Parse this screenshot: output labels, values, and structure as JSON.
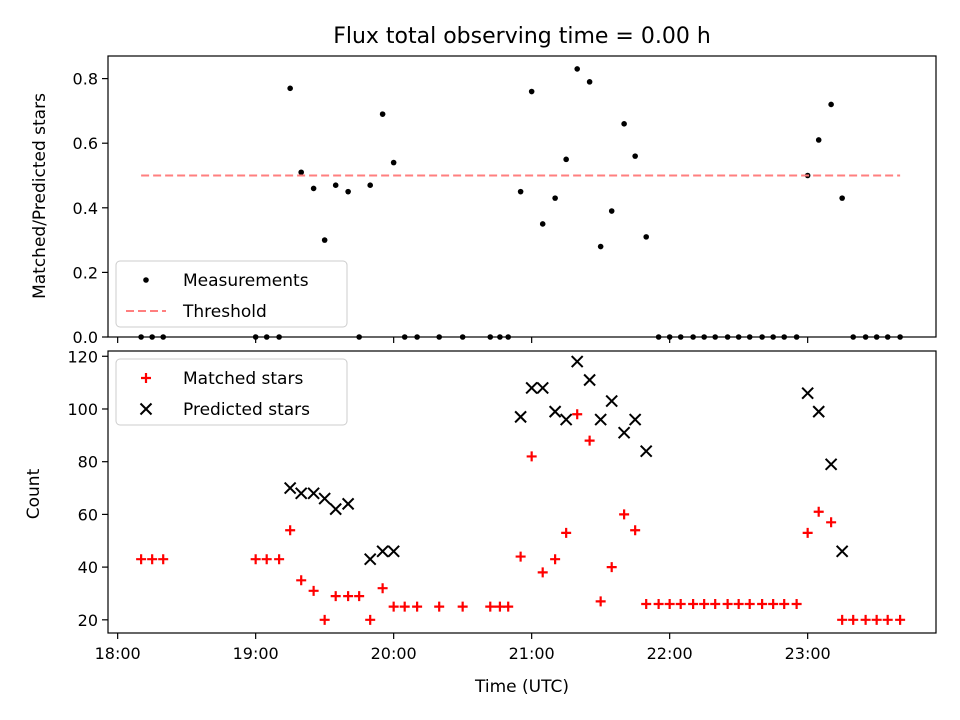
{
  "chart_data": [
    {
      "type": "scatter",
      "title": "Flux total observing time = 0.00 h",
      "ylabel": "Matched/Predicted stars",
      "xlabel": "",
      "ylim": [
        0,
        0.87
      ],
      "xlim": [
        17.93,
        23.93
      ],
      "yticks": [
        0.0,
        0.2,
        0.4,
        0.6,
        0.8
      ],
      "ytick_labels": [
        "0.0",
        "0.2",
        "0.4",
        "0.6",
        "0.8"
      ],
      "legend_position": "bottom-left",
      "series": [
        {
          "name": "Measurements",
          "marker": "dot",
          "color": "#000000",
          "points": [
            [
              18.17,
              0.0
            ],
            [
              18.25,
              0.0
            ],
            [
              18.33,
              0.0
            ],
            [
              19.0,
              0.0
            ],
            [
              19.08,
              0.0
            ],
            [
              19.17,
              0.0
            ],
            [
              19.25,
              0.77
            ],
            [
              19.33,
              0.51
            ],
            [
              19.42,
              0.46
            ],
            [
              19.5,
              0.3
            ],
            [
              19.58,
              0.47
            ],
            [
              19.67,
              0.45
            ],
            [
              19.75,
              0.0
            ],
            [
              19.83,
              0.47
            ],
            [
              19.92,
              0.69
            ],
            [
              20.0,
              0.54
            ],
            [
              20.08,
              0.0
            ],
            [
              20.17,
              0.0
            ],
            [
              20.33,
              0.0
            ],
            [
              20.5,
              0.0
            ],
            [
              20.7,
              0.0
            ],
            [
              20.77,
              0.0
            ],
            [
              20.83,
              0.0
            ],
            [
              20.92,
              0.45
            ],
            [
              21.0,
              0.76
            ],
            [
              21.08,
              0.35
            ],
            [
              21.17,
              0.43
            ],
            [
              21.25,
              0.55
            ],
            [
              21.33,
              0.83
            ],
            [
              21.42,
              0.79
            ],
            [
              21.5,
              0.28
            ],
            [
              21.58,
              0.39
            ],
            [
              21.67,
              0.66
            ],
            [
              21.75,
              0.56
            ],
            [
              21.83,
              0.31
            ],
            [
              21.92,
              0.0
            ],
            [
              22.0,
              0.0
            ],
            [
              22.08,
              0.0
            ],
            [
              22.17,
              0.0
            ],
            [
              22.25,
              0.0
            ],
            [
              22.33,
              0.0
            ],
            [
              22.42,
              0.0
            ],
            [
              22.5,
              0.0
            ],
            [
              22.58,
              0.0
            ],
            [
              22.67,
              0.0
            ],
            [
              22.75,
              0.0
            ],
            [
              22.83,
              0.0
            ],
            [
              22.92,
              0.0
            ],
            [
              23.0,
              0.5
            ],
            [
              23.08,
              0.61
            ],
            [
              23.17,
              0.72
            ],
            [
              23.25,
              0.43
            ],
            [
              23.33,
              0.0
            ],
            [
              23.42,
              0.0
            ],
            [
              23.5,
              0.0
            ],
            [
              23.58,
              0.0
            ],
            [
              23.67,
              0.0
            ]
          ]
        },
        {
          "name": "Threshold",
          "marker": "dashed-line",
          "color": "#ff7f7f",
          "points": [
            [
              18.17,
              0.5
            ],
            [
              23.67,
              0.5
            ]
          ]
        }
      ]
    },
    {
      "type": "scatter",
      "title": "",
      "ylabel": "Count",
      "xlabel": "Time (UTC)",
      "ylim": [
        15,
        122
      ],
      "xlim": [
        17.93,
        23.93
      ],
      "yticks": [
        20,
        40,
        60,
        80,
        100,
        120
      ],
      "ytick_labels": [
        "20",
        "40",
        "60",
        "80",
        "100",
        "120"
      ],
      "xticks": [
        18,
        19,
        20,
        21,
        22,
        23
      ],
      "xtick_labels": [
        "18:00",
        "19:00",
        "20:00",
        "21:00",
        "22:00",
        "23:00"
      ],
      "legend_position": "top-left",
      "series": [
        {
          "name": "Matched stars",
          "marker": "plus",
          "color": "#ff0000",
          "points": [
            [
              18.17,
              43
            ],
            [
              18.25,
              43
            ],
            [
              18.33,
              43
            ],
            [
              19.0,
              43
            ],
            [
              19.08,
              43
            ],
            [
              19.17,
              43
            ],
            [
              19.25,
              54
            ],
            [
              19.33,
              35
            ],
            [
              19.42,
              31
            ],
            [
              19.5,
              20
            ],
            [
              19.58,
              29
            ],
            [
              19.67,
              29
            ],
            [
              19.75,
              29
            ],
            [
              19.83,
              20
            ],
            [
              19.92,
              32
            ],
            [
              20.0,
              25
            ],
            [
              20.08,
              25
            ],
            [
              20.17,
              25
            ],
            [
              20.33,
              25
            ],
            [
              20.5,
              25
            ],
            [
              20.7,
              25
            ],
            [
              20.77,
              25
            ],
            [
              20.83,
              25
            ],
            [
              20.92,
              44
            ],
            [
              21.0,
              82
            ],
            [
              21.08,
              38
            ],
            [
              21.17,
              43
            ],
            [
              21.25,
              53
            ],
            [
              21.33,
              98
            ],
            [
              21.42,
              88
            ],
            [
              21.5,
              27
            ],
            [
              21.58,
              40
            ],
            [
              21.67,
              60
            ],
            [
              21.75,
              54
            ],
            [
              21.83,
              26
            ],
            [
              21.92,
              26
            ],
            [
              22.0,
              26
            ],
            [
              22.08,
              26
            ],
            [
              22.17,
              26
            ],
            [
              22.25,
              26
            ],
            [
              22.33,
              26
            ],
            [
              22.42,
              26
            ],
            [
              22.5,
              26
            ],
            [
              22.58,
              26
            ],
            [
              22.67,
              26
            ],
            [
              22.75,
              26
            ],
            [
              22.83,
              26
            ],
            [
              22.92,
              26
            ],
            [
              23.0,
              53
            ],
            [
              23.08,
              61
            ],
            [
              23.17,
              57
            ],
            [
              23.25,
              20
            ],
            [
              23.33,
              20
            ],
            [
              23.42,
              20
            ],
            [
              23.5,
              20
            ],
            [
              23.58,
              20
            ],
            [
              23.67,
              20
            ]
          ]
        },
        {
          "name": "Predicted stars",
          "marker": "x",
          "color": "#000000",
          "points": [
            [
              19.25,
              70
            ],
            [
              19.33,
              68
            ],
            [
              19.42,
              68
            ],
            [
              19.5,
              66
            ],
            [
              19.58,
              62
            ],
            [
              19.67,
              64
            ],
            [
              19.83,
              43
            ],
            [
              19.92,
              46
            ],
            [
              20.0,
              46
            ],
            [
              20.92,
              97
            ],
            [
              21.0,
              108
            ],
            [
              21.08,
              108
            ],
            [
              21.17,
              99
            ],
            [
              21.25,
              96
            ],
            [
              21.33,
              118
            ],
            [
              21.42,
              111
            ],
            [
              21.5,
              96
            ],
            [
              21.58,
              103
            ],
            [
              21.67,
              91
            ],
            [
              21.75,
              96
            ],
            [
              21.83,
              84
            ],
            [
              23.0,
              106
            ],
            [
              23.08,
              99
            ],
            [
              23.17,
              79
            ],
            [
              23.25,
              46
            ]
          ]
        }
      ]
    }
  ]
}
